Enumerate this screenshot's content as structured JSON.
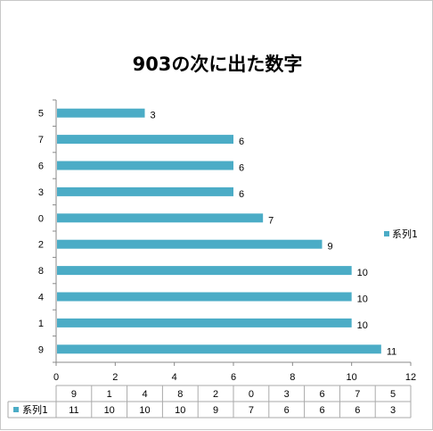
{
  "chart_data": {
    "type": "bar",
    "orientation": "horizontal",
    "title": "903の次に出た数字",
    "categories": [
      "9",
      "1",
      "4",
      "8",
      "2",
      "0",
      "3",
      "6",
      "7",
      "5"
    ],
    "series": [
      {
        "name": "系列1",
        "values": [
          11,
          10,
          10,
          10,
          9,
          7,
          6,
          6,
          6,
          3
        ]
      }
    ],
    "xlim": [
      0,
      12
    ],
    "xticks": [
      "0",
      "2",
      "4",
      "6",
      "8",
      "10",
      "12"
    ],
    "grid": false,
    "legend": "right",
    "data_table": true,
    "bar_color": "#4bacc6"
  }
}
